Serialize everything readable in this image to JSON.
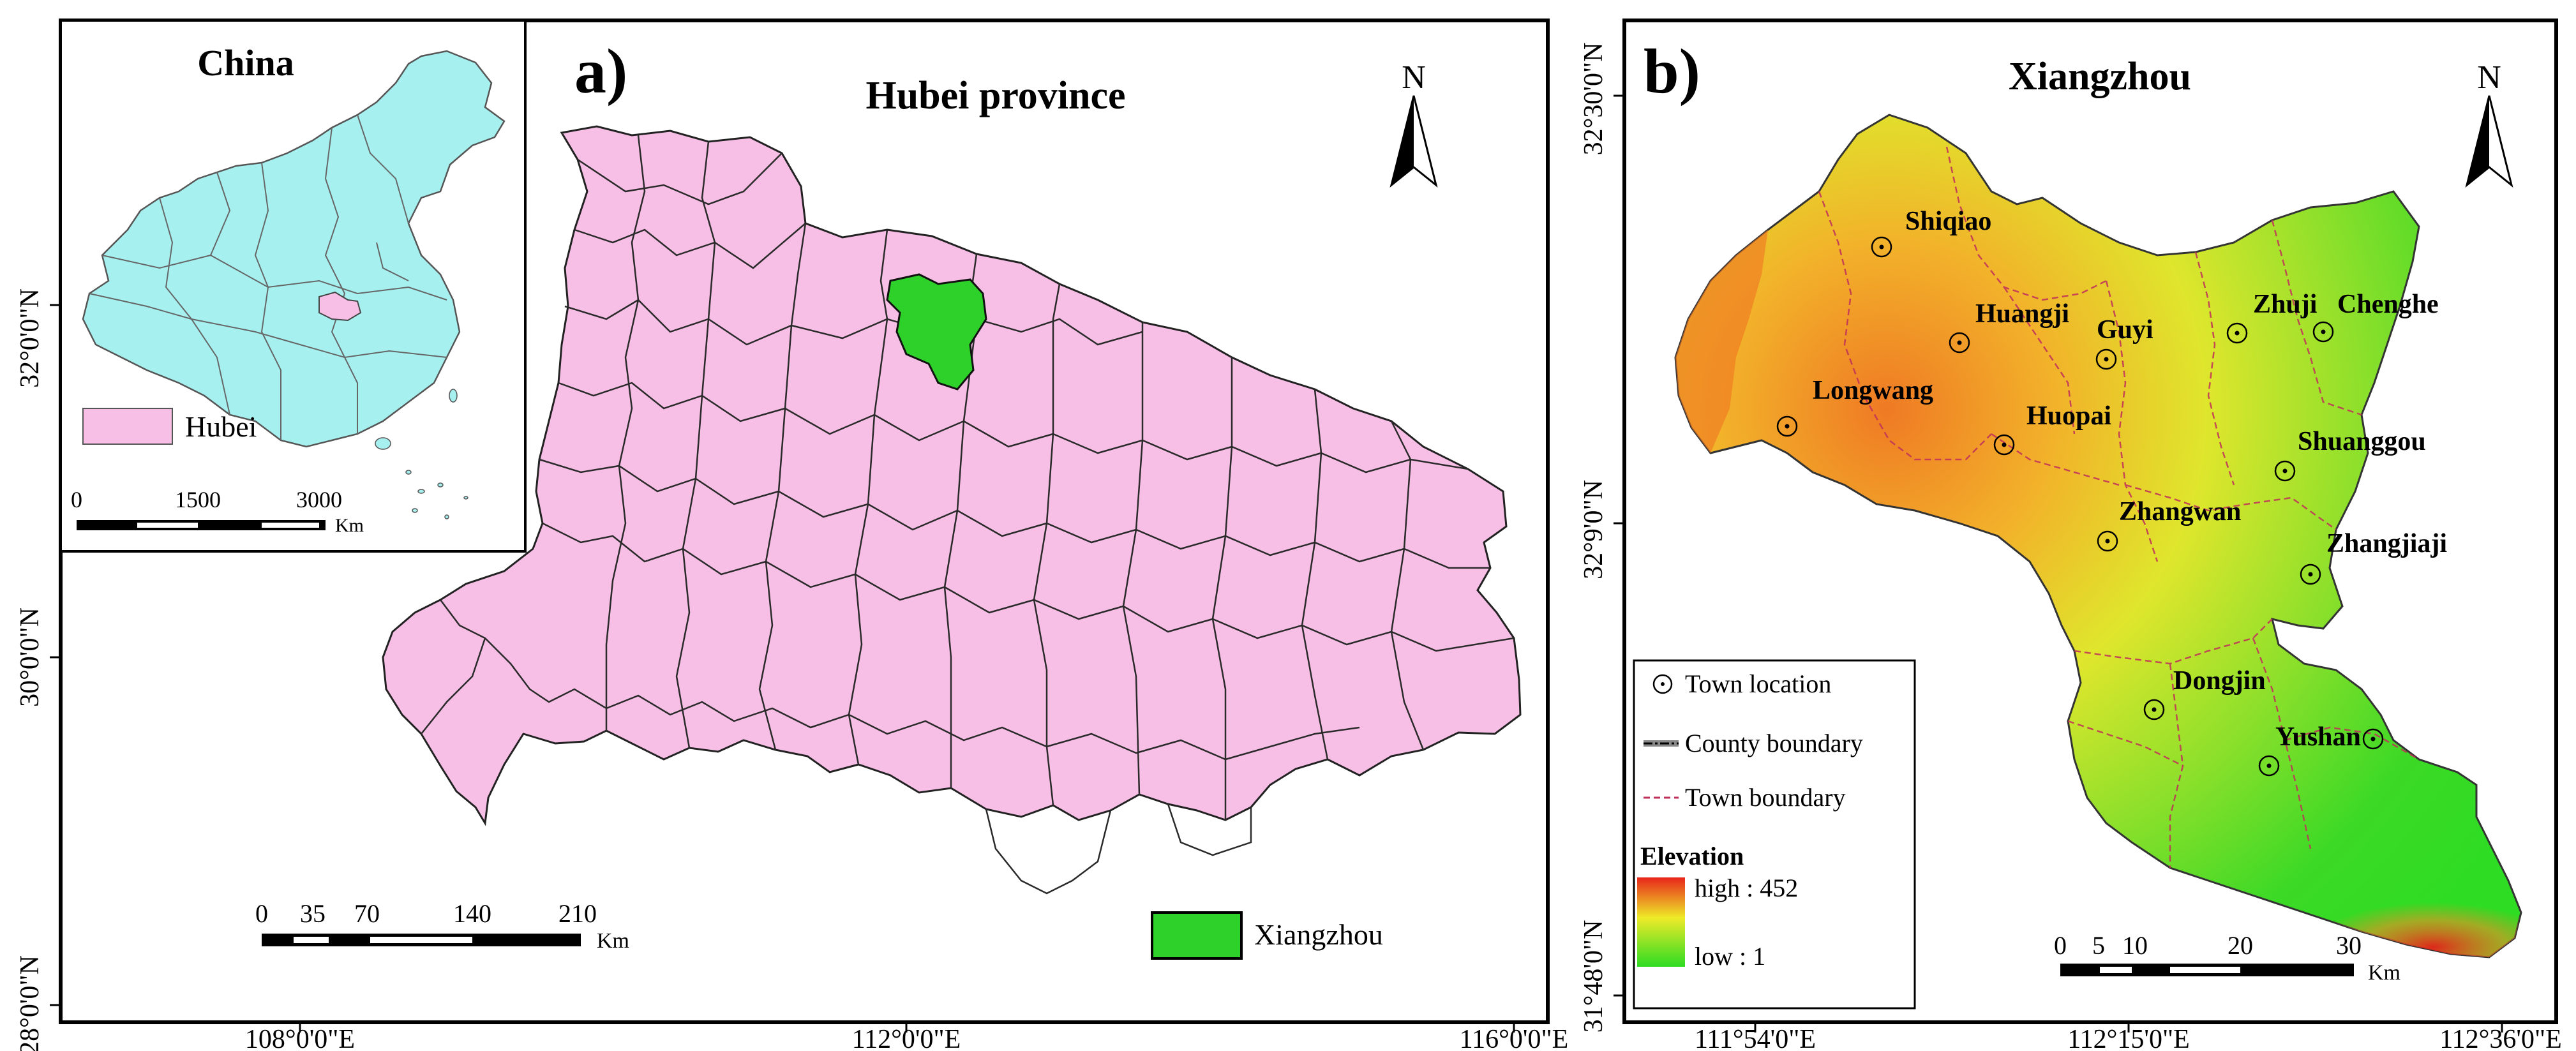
{
  "panel_a": {
    "label": "a)",
    "title": "Hubei province",
    "north": "N",
    "lat_labels": [
      "32°0'0\"N",
      "30°0'0\"N",
      "28°0'0\"N"
    ],
    "lon_labels": [
      "108°0'0\"E",
      "112°0'0\"E",
      "116°0'0\"E"
    ],
    "scale_numbers": [
      "0",
      "35",
      "70",
      "140",
      "210"
    ],
    "scale_unit": "Km",
    "legend_label": "Xiangzhou",
    "colors": {
      "province": "#f7bfe6",
      "highlight": "#2ed12a",
      "border": "#333333"
    }
  },
  "inset": {
    "title": "China",
    "legend_label": "Hubei",
    "scale_numbers": [
      "0",
      "1500",
      "3000"
    ],
    "scale_unit": "Km",
    "colors": {
      "country": "#a6f0f0",
      "hubei": "#f7bfe6"
    }
  },
  "panel_b": {
    "label": "b)",
    "title": "Xiangzhou",
    "north": "N",
    "lat_labels": [
      "32°30'0\"N",
      "32°9'0\"N",
      "31°48'0\"N"
    ],
    "lon_labels": [
      "111°54'0\"E",
      "112°15'0\"E",
      "112°36'0\"E"
    ],
    "towns": [
      "Shiqiao",
      "Huangji",
      "Guyi",
      "Zhuji",
      "Chenghe",
      "Longwang",
      "Huopai",
      "Shuanggou",
      "Zhangwan",
      "Zhangjiaji",
      "Dongjin",
      "Yushan"
    ],
    "legend": {
      "town_location": "Town location",
      "county_boundary": "County boundary",
      "town_boundary": "Town boundary",
      "elevation_title": "Elevation",
      "elev_high": "high : 452",
      "elev_low": "low : 1"
    },
    "scale_numbers": [
      "0",
      "5",
      "10",
      "20",
      "30"
    ],
    "scale_unit": "Km",
    "colors": {
      "high": "#e8241a",
      "mid": "#f2ea2a",
      "low": "#2ddc23"
    }
  }
}
